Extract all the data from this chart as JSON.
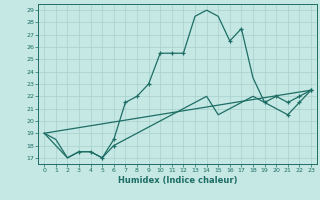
{
  "xlabel": "Humidex (Indice chaleur)",
  "ylabel": "",
  "background_color": "#c5e8e5",
  "line_color": "#1e6e65",
  "grid_color": "#a8d0cc",
  "ylim": [
    16.5,
    29.5
  ],
  "xlim": [
    -0.5,
    23.5
  ],
  "yticks": [
    17,
    18,
    19,
    20,
    21,
    22,
    23,
    24,
    25,
    26,
    27,
    28,
    29
  ],
  "xticks": [
    0,
    1,
    2,
    3,
    4,
    5,
    6,
    7,
    8,
    9,
    10,
    11,
    12,
    13,
    14,
    15,
    16,
    17,
    18,
    19,
    20,
    21,
    22,
    23
  ],
  "series1_x": [
    0,
    1,
    2,
    3,
    4,
    5,
    6,
    7,
    8,
    9,
    10,
    11,
    12,
    13,
    14,
    15,
    16,
    17,
    18,
    19,
    20,
    21,
    22,
    23
  ],
  "series1_y": [
    19,
    18.5,
    17,
    17.5,
    17.5,
    17,
    18.5,
    21.5,
    22,
    23,
    25.5,
    25.5,
    25.5,
    28.5,
    29,
    28.5,
    26.5,
    27.5,
    23.5,
    21.5,
    21,
    20.5,
    21.5,
    22.5
  ],
  "series1_marker_x": [
    6,
    7,
    8,
    9,
    10,
    11,
    12,
    16,
    17,
    21,
    22,
    23
  ],
  "series1_marker_y": [
    18.5,
    21.5,
    22,
    23,
    25.5,
    25.5,
    25.5,
    26.5,
    27.5,
    20.5,
    21.5,
    22.5
  ],
  "series2_x": [
    0,
    1,
    2,
    3,
    4,
    5,
    6,
    7,
    8,
    9,
    10,
    11,
    12,
    13,
    14,
    15,
    16,
    17,
    18,
    19,
    20,
    21,
    22,
    23
  ],
  "series2_y": [
    19,
    18,
    17,
    17.5,
    17.5,
    17,
    18,
    18.5,
    19,
    19.5,
    20,
    20.5,
    21,
    21.5,
    22,
    20.5,
    21,
    21.5,
    22,
    21.5,
    22,
    21.5,
    22,
    22.5
  ],
  "series2_marker_x": [
    3,
    4,
    5,
    6,
    19,
    20,
    21,
    22,
    23
  ],
  "series2_marker_y": [
    17.5,
    17.5,
    17,
    18,
    21.5,
    22,
    21.5,
    22,
    22.5
  ],
  "series3_x": [
    0,
    23
  ],
  "series3_y": [
    19,
    22.5
  ]
}
